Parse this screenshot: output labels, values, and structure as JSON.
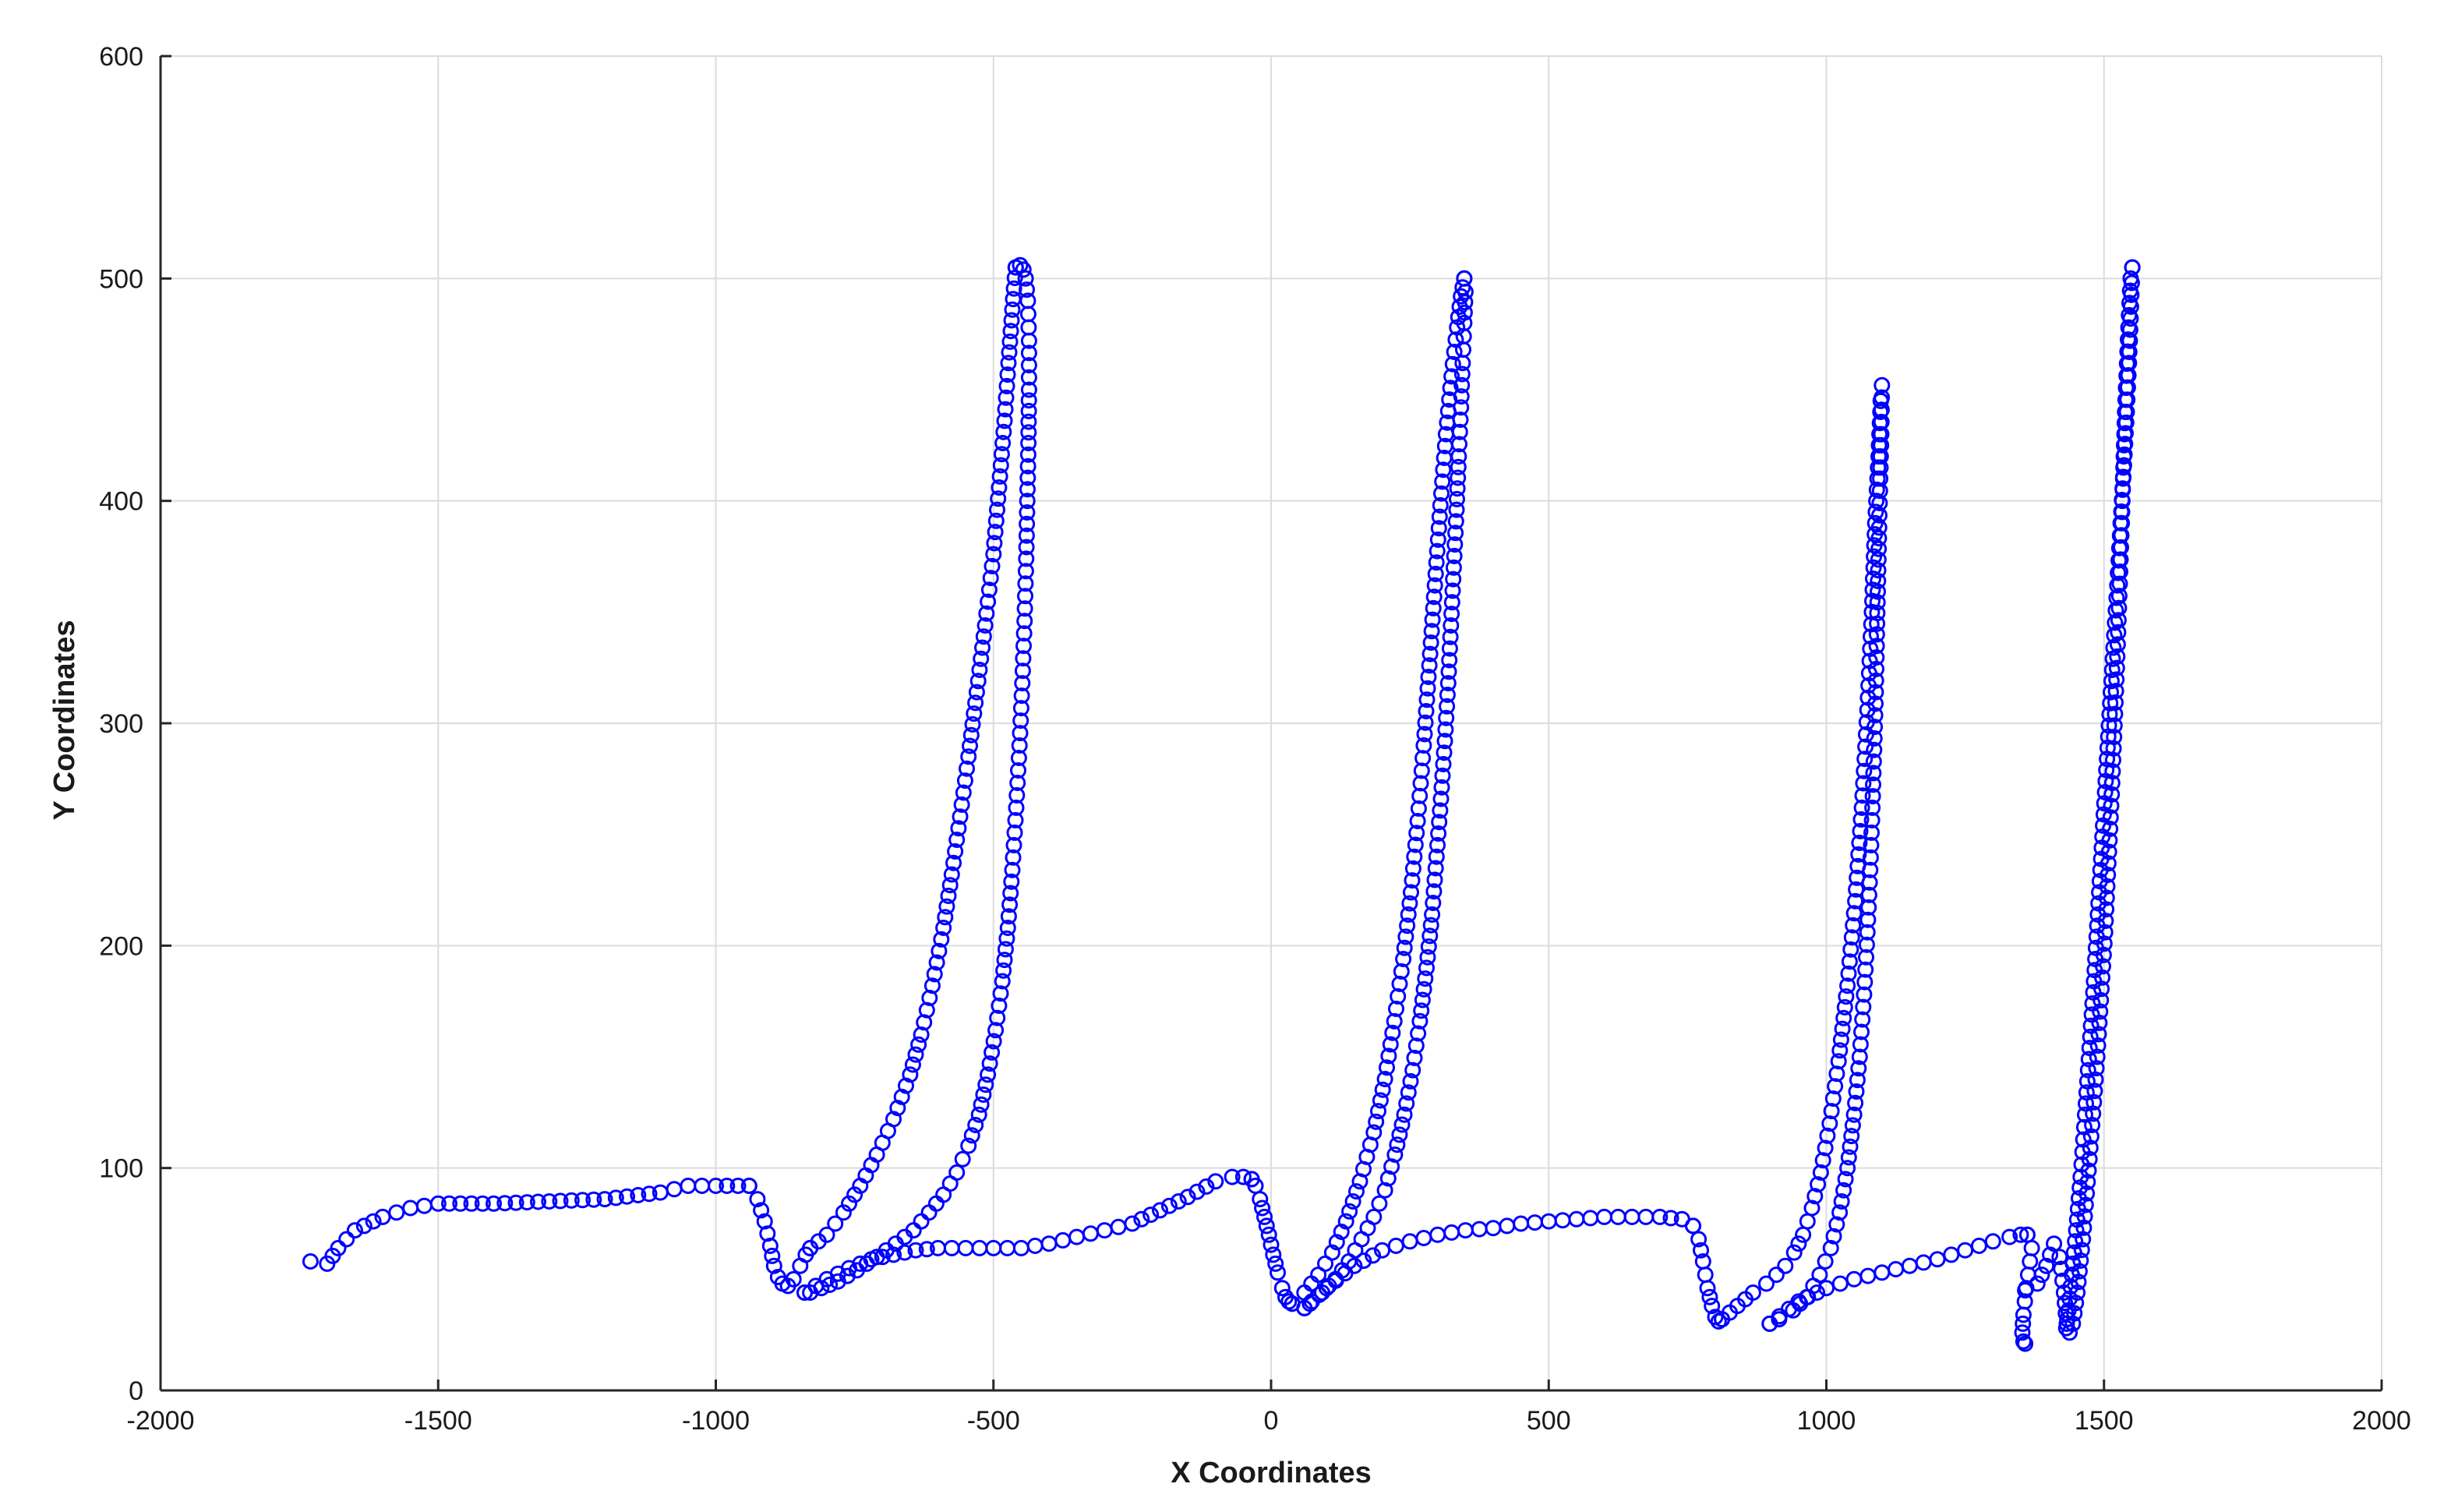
{
  "chart_data": {
    "type": "scatter",
    "title": "",
    "xlabel": "X Coordinates",
    "ylabel": "Y Coordinates",
    "xlim": [
      -2000,
      2000
    ],
    "ylim": [
      0,
      600
    ],
    "xticks": [
      -2000,
      -1500,
      -1000,
      -500,
      0,
      500,
      1000,
      1500,
      2000
    ],
    "yticks": [
      0,
      100,
      200,
      300,
      400,
      500,
      600
    ],
    "xtick_labels": [
      "-2000",
      "-1500",
      "-1000",
      "-500",
      "0",
      "500",
      "1000",
      "1500",
      "2000"
    ],
    "ytick_labels": [
      "0",
      "100",
      "200",
      "300",
      "400",
      "500",
      "600"
    ],
    "grid": true,
    "legend": "none",
    "marker": "circle-open",
    "color": "#0000ff",
    "series": [
      {
        "segments": [
          {
            "x": [
              -1730,
              -1700,
              -1680,
              -1650,
              -1600,
              -1550,
              -1500,
              -1400,
              -1300,
              -1200,
              -1100,
              -1050,
              -1000,
              -960,
              -940
            ],
            "y": [
              58,
              57,
              64,
              72,
              78,
              82,
              84,
              84,
              85,
              86,
              89,
              92,
              92,
              92,
              92
            ]
          },
          {
            "x": [
              -940,
              -925,
              -912,
              -902,
              -895,
              -888,
              -880,
              -870,
              -860,
              -848,
              -838,
              -830
            ],
            "y": [
              92,
              86,
              76,
              65,
              56,
              51,
              48,
              47,
              50,
              56,
              61,
              64
            ]
          },
          {
            "x": [
              -830,
              -800,
              -770,
              -740,
              -710,
              -680,
              -650,
              -630,
              -610,
              -590,
              -575,
              -560,
              -545,
              -530,
              -515,
              -500,
              -490,
              -480,
              -473,
              -466,
              -460
            ],
            "y": [
              64,
              70,
              80,
              92,
              106,
              122,
              142,
              160,
              182,
              208,
              232,
              258,
              285,
              314,
              344,
              376,
              406,
              436,
              462,
              486,
              505
            ]
          },
          {
            "x": [
              -460,
              -452,
              -446,
              -442,
              -438,
              -436,
              -436,
              -437,
              -439,
              -441,
              -444,
              -448,
              -453,
              -459,
              -466,
              -474,
              -484,
              -496,
              -510,
              -526,
              -545,
              -566,
              -590,
              -616,
              -644,
              -676,
              -710,
              -746,
              -780,
              -810,
              -830,
              -840
            ],
            "y": [
              505,
              506,
              504,
              500,
              490,
              472,
              450,
              426,
              400,
              374,
              346,
              318,
              290,
              262,
              234,
              208,
              184,
              162,
              142,
              124,
              110,
              98,
              88,
              80,
              72,
              66,
              60,
              54,
              49,
              46,
              44,
              44
            ]
          },
          {
            "x": [
              -840,
              -800,
              -760,
              -720,
              -680,
              -640,
              -600,
              -550,
              -500,
              -450,
              -400,
              -350,
              -300,
              -250,
              -200,
              -150,
              -100,
              -70,
              -50,
              -35
            ],
            "y": [
              44,
              50,
              55,
              59,
              61,
              63,
              64,
              64,
              64,
              64,
              66,
              69,
              72,
              75,
              81,
              87,
              94,
              96,
              96,
              95
            ]
          },
          {
            "x": [
              -35,
              -28,
              -20,
              -12,
              -4,
              4,
              12,
              20,
              26,
              32,
              38
            ],
            "y": [
              95,
              92,
              86,
              78,
              70,
              61,
              53,
              46,
              42,
              40,
              39
            ]
          },
          {
            "x": [
              38,
              60,
              85,
              110,
              135,
              160,
              185,
              205,
              222,
              238,
              252,
              264,
              275,
              285,
              295,
              305,
              315,
              325,
              335,
              342,
              348
            ],
            "y": [
              39,
              44,
              52,
              62,
              76,
              94,
              116,
              140,
              166,
              194,
              224,
              256,
              290,
              326,
              362,
              398,
              430,
              456,
              478,
              492,
              500
            ]
          },
          {
            "x": [
              348,
              350,
              348,
              345,
              342,
              338,
              334,
              329,
              324,
              319,
              313,
              306,
              298,
              290,
              280,
              268,
              255,
              240,
              223,
              205,
              185,
              163,
              140,
              116,
              92,
              70,
              60
            ],
            "y": [
              500,
              494,
              480,
              462,
              442,
              420,
              396,
              370,
              344,
              318,
              292,
              266,
              240,
              214,
              190,
              166,
              144,
              124,
              106,
              90,
              78,
              68,
              58,
              50,
              44,
              39,
              37
            ]
          },
          {
            "x": [
              60,
              100,
              150,
              200,
              250,
              300,
              350,
              400,
              450,
              500,
              550,
              600,
              650,
              700,
              740,
              760
            ],
            "y": [
              37,
              46,
              56,
              63,
              67,
              70,
              72,
              73,
              75,
              76,
              77,
              78,
              78,
              78,
              77,
              74
            ]
          },
          {
            "x": [
              760,
              770,
              778,
              786,
              794,
              800,
              806,
              812
            ],
            "y": [
              74,
              68,
              58,
              46,
              38,
              33,
              31,
              32
            ]
          },
          {
            "x": [
              812,
              840,
              868,
              892,
              910,
              926,
              942,
              958,
              974,
              990,
              1006,
              1022,
              1038,
              1052,
              1064,
              1074,
              1082,
              1088,
              1094,
              1098
            ],
            "y": [
              32,
              38,
              44,
              48,
              52,
              56,
              62,
              70,
              82,
              98,
              120,
              148,
              182,
              220,
              262,
              306,
              350,
              390,
              420,
              445
            ]
          },
          {
            "x": [
              1098,
              1100,
              1099,
              1097,
              1095,
              1093,
              1091,
              1089,
              1086,
              1083,
              1079,
              1074,
              1068,
              1060,
              1050,
              1038,
              1024,
              1008,
              988,
              965,
              940,
              915,
              898
            ],
            "y": [
              445,
              452,
              430,
              410,
              388,
              364,
              340,
              314,
              288,
              262,
              234,
              206,
              178,
              150,
              124,
              100,
              80,
              64,
              52,
              42,
              36,
              32,
              30
            ]
          },
          {
            "x": [
              898,
              950,
              1000,
              1050,
              1100,
              1150,
              1200,
              1250,
              1300,
              1330,
              1350,
              1362
            ],
            "y": [
              30,
              40,
              46,
              50,
              53,
              56,
              59,
              63,
              67,
              69,
              70,
              70
            ]
          },
          {
            "x": [
              1362,
              1370,
              1360,
              1355,
              1353,
              1355,
              1358
            ],
            "y": [
              70,
              64,
              46,
              34,
              26,
              22,
              21
            ]
          },
          {
            "x": [
              1358,
              1380,
              1396,
              1410,
              1420,
              1428,
              1433,
              1438,
              1444,
              1452,
              1462,
              1474,
              1488,
              1502,
              1514,
              1524,
              1532,
              1538,
              1544,
              1548,
              1551
            ],
            "y": [
              45,
              48,
              56,
              66,
              60,
              44,
              30,
              26,
              30,
              44,
              68,
              104,
              150,
              206,
              268,
              330,
              390,
              440,
              478,
              500,
              505
            ]
          },
          {
            "x": [
              1551,
              1550,
              1548,
              1545,
              1541,
              1536,
              1530,
              1524,
              1517,
              1510,
              1503,
              1496,
              1489,
              1482,
              1474,
              1466,
              1458,
              1450,
              1442,
              1436,
              1432
            ],
            "y": [
              505,
              498,
              482,
              462,
              440,
              416,
              390,
              362,
              334,
              304,
              274,
              244,
              214,
              184,
              154,
              124,
              96,
              72,
              52,
              36,
              28
            ]
          }
        ]
      }
    ]
  }
}
